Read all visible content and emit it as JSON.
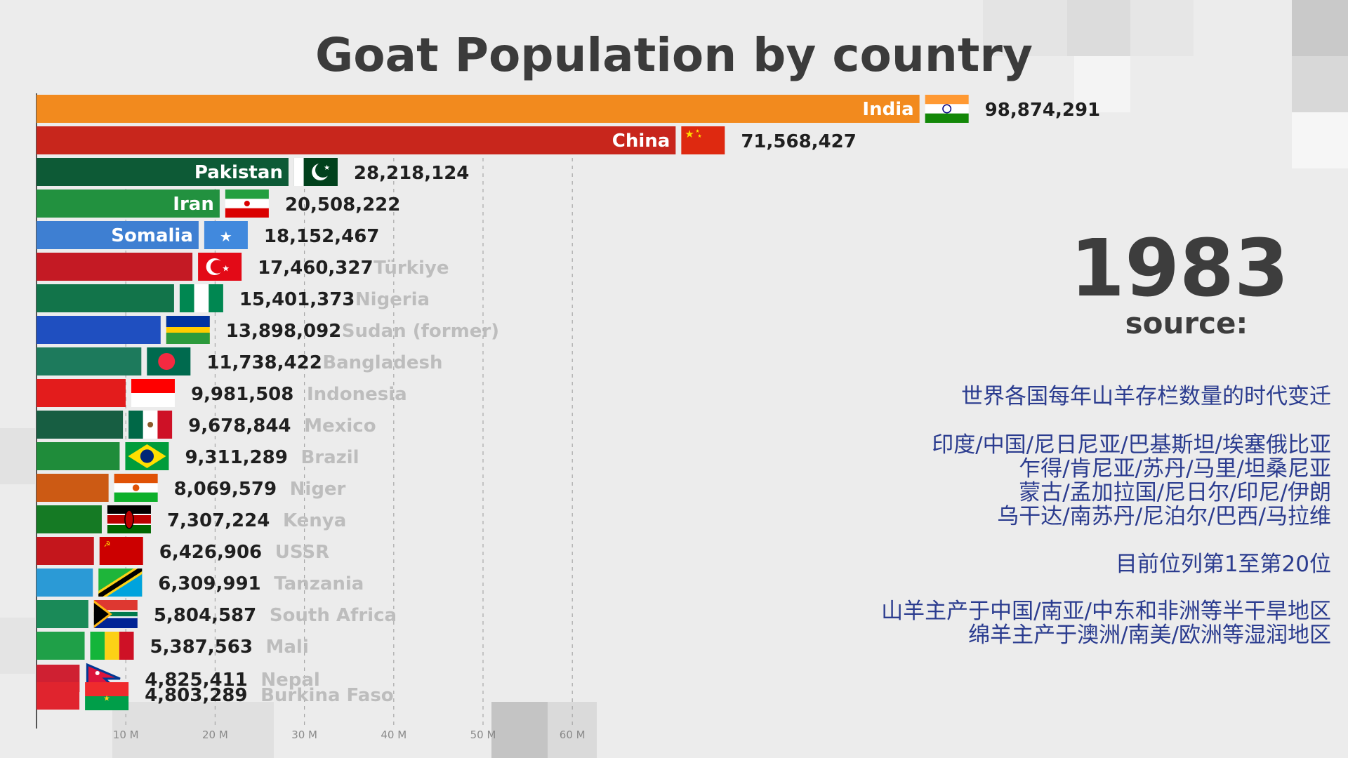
{
  "colors": {
    "background": "#ececec",
    "title": "#3b3b3b",
    "value_text": "#1f1f1f",
    "outside_label": "#bdbdbd",
    "chinese_text": "#2b3c8f"
  },
  "title": "Goat Population by country",
  "year": "1983",
  "source_label": "source:",
  "annotations": {
    "line1": "世界各国每年山羊存栏数量的时代变迁",
    "list": [
      "印度/中国/尼日尼亚/巴基斯坦/埃塞俄比亚",
      "乍得/肯尼亚/苏丹/马里/坦桑尼亚",
      "蒙古/孟加拉国/尼日尔/印尼/伊朗",
      "乌干达/南苏丹/尼泊尔/巴西/马拉维"
    ],
    "rank_note": "目前位列第1至第20位",
    "footer": [
      "山羊主产于中国/南亚/中东和非洲等半干旱地区",
      "绵羊主产于澳洲/南美/欧洲等湿润地区"
    ]
  },
  "chart_data": {
    "type": "bar",
    "orientation": "horizontal",
    "title": "Goat Population by country",
    "year": "1983",
    "xlim": [
      0,
      100000000
    ],
    "x_ticks": [
      {
        "value": 10000000,
        "label": "10 M"
      },
      {
        "value": 20000000,
        "label": "20 M"
      },
      {
        "value": 30000000,
        "label": "30 M"
      },
      {
        "value": 40000000,
        "label": "40 M"
      },
      {
        "value": 50000000,
        "label": "50 M"
      },
      {
        "value": 60000000,
        "label": "60 M"
      }
    ],
    "grid": true,
    "bars": [
      {
        "name": "India",
        "value": 98874291,
        "value_label": "98,874,291",
        "color": "#f28a1e",
        "flag": "india-flag-icon",
        "label_inside": true
      },
      {
        "name": "China",
        "value": 71568427,
        "value_label": "71,568,427",
        "color": "#c8261c",
        "flag": "china-flag-icon",
        "label_inside": true
      },
      {
        "name": "Pakistan",
        "value": 28218124,
        "value_label": "28,218,124",
        "color": "#0d5a36",
        "flag": "pakistan-flag-icon",
        "label_inside": true
      },
      {
        "name": "Iran",
        "value": 20508222,
        "value_label": "20,508,222",
        "color": "#22913f",
        "flag": "iran-flag-icon",
        "label_inside": true
      },
      {
        "name": "Somalia",
        "value": 18152467,
        "value_label": "18,152,467",
        "color": "#3e7fd2",
        "flag": "somalia-flag-icon",
        "label_inside": true
      },
      {
        "name": "Türkiye",
        "value": 17460327,
        "value_label": "17,460,327",
        "color": "#c41a24",
        "flag": "turkiye-flag-icon",
        "label_inside": false
      },
      {
        "name": "Nigeria",
        "value": 15401373,
        "value_label": "15,401,373",
        "color": "#12744a",
        "flag": "nigeria-flag-icon",
        "label_inside": false
      },
      {
        "name": "Sudan (former)",
        "value": 13898092,
        "value_label": "13,898,092",
        "color": "#1f4fc0",
        "flag": "sudan-former-flag-icon",
        "label_inside": false
      },
      {
        "name": "Bangladesh",
        "value": 11738422,
        "value_label": "11,738,422",
        "color": "#1d7a5c",
        "flag": "bangladesh-flag-icon",
        "label_inside": false
      },
      {
        "name": "Indonesia",
        "value": 9981508,
        "value_label": "9,981,508",
        "color": "#e31c1c",
        "flag": "indonesia-flag-icon",
        "label_inside": false
      },
      {
        "name": "Mexico",
        "value": 9678844,
        "value_label": "9,678,844",
        "color": "#175e42",
        "flag": "mexico-flag-icon",
        "label_inside": false
      },
      {
        "name": "Brazil",
        "value": 9311289,
        "value_label": "9,311,289",
        "color": "#1f8c3a",
        "flag": "brazil-flag-icon",
        "label_inside": false
      },
      {
        "name": "Niger",
        "value": 8069579,
        "value_label": "8,069,579",
        "color": "#cc5a14",
        "flag": "niger-flag-icon",
        "label_inside": false
      },
      {
        "name": "Kenya",
        "value": 7307224,
        "value_label": "7,307,224",
        "color": "#157a24",
        "flag": "kenya-flag-icon",
        "label_inside": false
      },
      {
        "name": "USSR",
        "value": 6426906,
        "value_label": "6,426,906",
        "color": "#c4161c",
        "flag": "ussr-flag-icon",
        "label_inside": false
      },
      {
        "name": "Tanzania",
        "value": 6309991,
        "value_label": "6,309,991",
        "color": "#2b9ad6",
        "flag": "tanzania-flag-icon",
        "label_inside": false
      },
      {
        "name": "South Africa",
        "value": 5804587,
        "value_label": "5,804,587",
        "color": "#1a8a58",
        "flag": "south-africa-flag-icon",
        "label_inside": false
      },
      {
        "name": "Mali",
        "value": 5387563,
        "value_label": "5,387,563",
        "color": "#1fa048",
        "flag": "mali-flag-icon",
        "label_inside": false
      },
      {
        "name": "Nepal",
        "value": 4825411,
        "value_label": "4,825,411",
        "color": "#cf2032",
        "flag": "nepal-flag-icon",
        "label_inside": false
      },
      {
        "name": "Burkina Faso",
        "value": 4803289,
        "value_label": "4,803,289",
        "color": "#e0242e",
        "flag": "burkina-faso-flag-icon",
        "label_inside": false
      }
    ]
  }
}
